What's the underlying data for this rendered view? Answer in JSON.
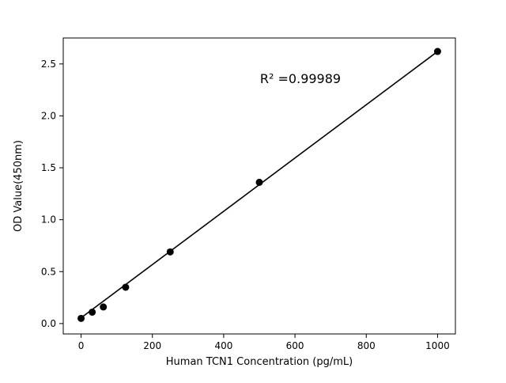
{
  "chart_data": {
    "type": "scatter",
    "x": [
      0,
      31.25,
      62.5,
      125,
      250,
      500,
      1000
    ],
    "y": [
      0.05,
      0.11,
      0.16,
      0.35,
      0.69,
      1.36,
      2.62
    ],
    "fit_line": {
      "x0": 0,
      "y0": 0.055,
      "x1": 1000,
      "y1": 2.62
    },
    "annotation": "R² =0.99989",
    "xlabel": "Human TCN1 Concentration (pg/mL)",
    "ylabel": "OD Value(450nm)",
    "xticks": [
      0,
      200,
      400,
      600,
      800,
      1000
    ],
    "xtick_labels": [
      "0",
      "200",
      "400",
      "600",
      "800",
      "1000"
    ],
    "yticks": [
      0.0,
      0.5,
      1.0,
      1.5,
      2.0,
      2.5
    ],
    "ytick_labels": [
      "0.0",
      "0.5",
      "1.0",
      "1.5",
      "2.0",
      "2.5"
    ],
    "xlim": [
      -50,
      1050
    ],
    "ylim": [
      -0.1,
      2.75
    ],
    "grid": false,
    "legend": null,
    "marker_color": "#000000",
    "line_color": "#000000",
    "axis_color": "#000000",
    "background": "#ffffff"
  }
}
